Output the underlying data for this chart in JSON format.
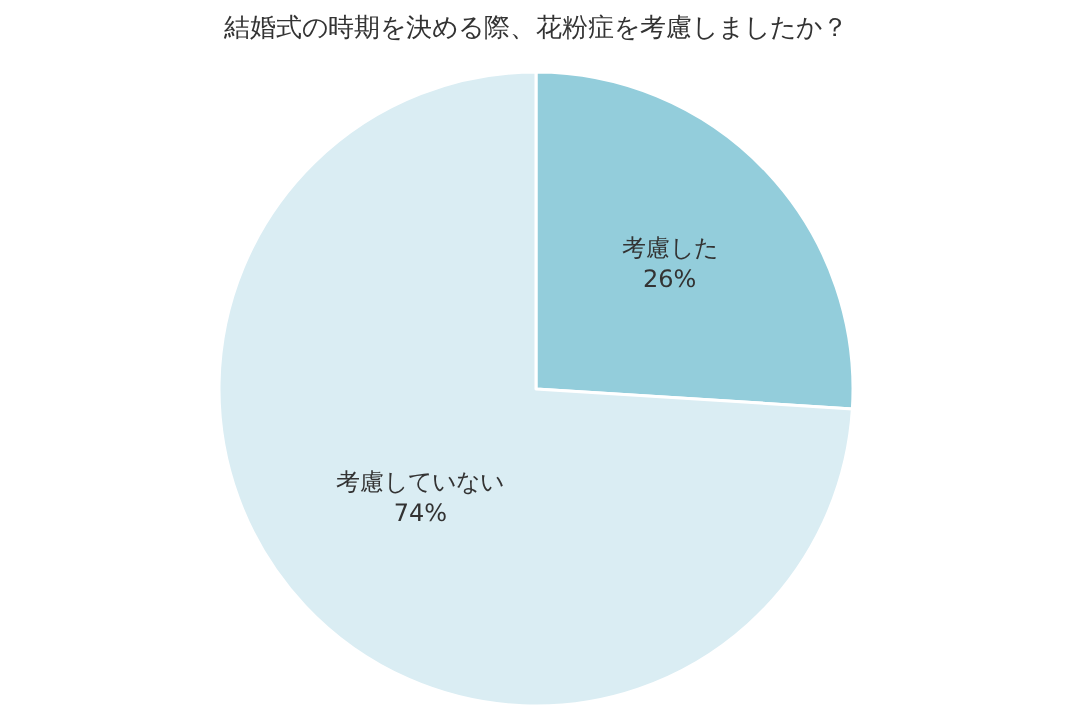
{
  "chart_data": {
    "type": "pie",
    "title": "結婚式の時期を決める際、花粉症を考慮しましたか？",
    "categories": [
      "考慮した",
      "考慮していない"
    ],
    "values": [
      26,
      74
    ],
    "value_labels": [
      "26%",
      "74%"
    ],
    "colors": [
      "#93cddb",
      "#daedf3"
    ],
    "legend": false
  }
}
